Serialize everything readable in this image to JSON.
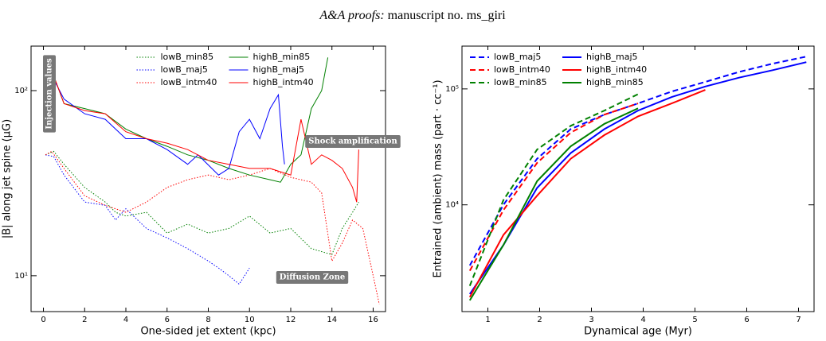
{
  "header": {
    "italic": "A&A proofs:",
    "rest": "manuscript no. ms_giri"
  },
  "chart_data": [
    {
      "type": "line",
      "yscale": "log",
      "legend": "upper center",
      "xlabel": "One-sided jet extent (kpc)",
      "ylabel": "|B| along jet spine (μG)",
      "xlim": [
        -0.6,
        16.6
      ],
      "xticks": [
        0,
        2,
        4,
        6,
        8,
        10,
        12,
        14,
        16
      ],
      "ylim": [
        6.4,
        174
      ],
      "yticks": [
        {
          "value": 10,
          "label": "10¹"
        },
        {
          "value": 100,
          "label": "10²"
        }
      ],
      "annotations": [
        "Injection values",
        "Shock amplification",
        "Diffusion Zone"
      ],
      "series": [
        {
          "name": "lowB_min85",
          "color": "#008000",
          "linestyle": "dotted",
          "x": [
            0.1,
            0.5,
            1,
            2,
            3,
            3.5,
            4,
            5,
            6,
            7,
            8,
            9,
            10,
            11,
            12,
            13,
            14,
            14.5,
            15,
            15.3
          ],
          "values": [
            45,
            47,
            40,
            30,
            25,
            22,
            21,
            22,
            17,
            19,
            17,
            18,
            21,
            17,
            18,
            14,
            13,
            18,
            22,
            25
          ]
        },
        {
          "name": "lowB_maj5",
          "color": "#0000ff",
          "linestyle": "dotted",
          "x": [
            0.1,
            0.5,
            1,
            2,
            3,
            3.5,
            4,
            5,
            6,
            7,
            8,
            8.5,
            9,
            9.5,
            10
          ],
          "values": [
            45,
            44,
            35,
            25,
            24,
            20,
            23,
            18,
            16,
            14,
            12,
            11,
            10,
            9,
            11
          ]
        },
        {
          "name": "lowB_intm40",
          "color": "#ff0000",
          "linestyle": "dotted",
          "x": [
            0.1,
            0.4,
            1,
            2,
            3,
            4,
            5,
            6,
            7,
            8,
            9,
            10,
            11,
            12,
            13,
            13.5,
            14,
            14.5,
            15,
            15.5,
            16,
            16.3
          ],
          "values": [
            45,
            47,
            38,
            27,
            24,
            22,
            25,
            30,
            33,
            35,
            33,
            35,
            38,
            34,
            32,
            28,
            12,
            15,
            20,
            18,
            10,
            7
          ]
        },
        {
          "name": "highB_min85",
          "color": "#008000",
          "linestyle": "solid",
          "x": [
            0.1,
            0.5,
            1,
            2,
            3,
            4,
            5,
            6,
            7,
            8,
            9,
            10,
            11,
            11.5,
            12,
            12.5,
            13,
            13.5,
            13.8
          ],
          "values": [
            140,
            120,
            85,
            80,
            75,
            62,
            55,
            50,
            45,
            42,
            38,
            35,
            33,
            32,
            40,
            45,
            80,
            100,
            151
          ]
        },
        {
          "name": "highB_maj5",
          "color": "#0000ff",
          "linestyle": "solid",
          "x": [
            0.1,
            0.5,
            1,
            2,
            3,
            4,
            5,
            6,
            7,
            7.5,
            8.5,
            9,
            9.5,
            10,
            10.5,
            11,
            11.4,
            11.6,
            11.7
          ],
          "values": [
            140,
            115,
            90,
            75,
            70,
            55,
            55,
            48,
            40,
            45,
            35,
            38,
            60,
            70,
            55,
            80,
            95,
            50,
            40
          ]
        },
        {
          "name": "highB_intm40",
          "color": "#ff0000",
          "linestyle": "solid",
          "x": [
            0.1,
            0.5,
            1,
            2,
            3,
            4,
            5,
            6,
            7,
            8,
            9,
            10,
            11,
            12,
            12.5,
            13,
            13.5,
            14,
            14.5,
            15,
            15.2,
            15.3
          ],
          "values": [
            145,
            120,
            85,
            78,
            75,
            60,
            55,
            52,
            48,
            42,
            40,
            38,
            38,
            35,
            70,
            40,
            45,
            42,
            38,
            30,
            25,
            48
          ]
        }
      ]
    },
    {
      "type": "line",
      "yscale": "log",
      "legend": "upper left",
      "xlabel": "Dynamical age (Myr)",
      "ylabel": "Entrained (ambient) mass (part · cc⁻¹)",
      "xlim": [
        0.5,
        7.3
      ],
      "xticks": [
        1,
        2,
        3,
        4,
        5,
        6,
        7
      ],
      "ylim": [
        1200,
        234000
      ],
      "yticks": [
        {
          "value": 10000,
          "label": "10⁴"
        },
        {
          "value": 100000,
          "label": "10⁵"
        }
      ],
      "series": [
        {
          "name": "lowB_maj5",
          "color": "#0000ff",
          "linestyle": "dashed",
          "x": [
            0.65,
            1.3,
            1.95,
            2.6,
            3.25,
            3.9,
            4.55,
            5.2,
            5.85,
            6.5,
            7.15
          ],
          "values": [
            3000,
            10000,
            25000,
            45000,
            60000,
            75000,
            95000,
            115000,
            140000,
            165000,
            190000
          ]
        },
        {
          "name": "lowB_intm40",
          "color": "#ff0000",
          "linestyle": "dashed",
          "x": [
            0.65,
            1.3,
            1.95,
            2.6,
            3.25,
            3.9
          ],
          "values": [
            2700,
            9000,
            23000,
            42000,
            60000,
            75000
          ]
        },
        {
          "name": "lowB_min85",
          "color": "#008000",
          "linestyle": "dashed",
          "x": [
            0.65,
            1.3,
            1.95,
            2.6,
            3.25,
            3.9
          ],
          "values": [
            2000,
            11000,
            30000,
            48000,
            65000,
            90000
          ]
        },
        {
          "name": "highB_maj5",
          "color": "#0000ff",
          "linestyle": "solid",
          "x": [
            0.65,
            1.3,
            1.95,
            2.6,
            3.25,
            3.9,
            4.55,
            5.2,
            5.85,
            6.5,
            7.15
          ],
          "values": [
            1700,
            4500,
            14000,
            28000,
            45000,
            65000,
            85000,
            105000,
            125000,
            145000,
            170000
          ]
        },
        {
          "name": "highB_intm40",
          "color": "#ff0000",
          "linestyle": "solid",
          "x": [
            0.65,
            1.3,
            1.95,
            2.6,
            3.25,
            3.9,
            4.55,
            5.2
          ],
          "values": [
            1600,
            5500,
            12000,
            25000,
            40000,
            58000,
            75000,
            98000
          ]
        },
        {
          "name": "highB_min85",
          "color": "#008000",
          "linestyle": "solid",
          "x": [
            0.65,
            1.3,
            1.95,
            2.6,
            3.25,
            3.9
          ],
          "values": [
            1500,
            4500,
            16000,
            32000,
            50000,
            68000
          ]
        }
      ]
    }
  ]
}
